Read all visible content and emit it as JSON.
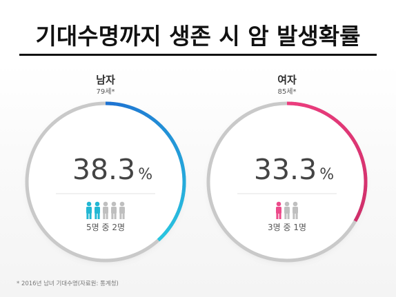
{
  "title": "기대수명까지 생존 시 암 발생확률",
  "footnote": "* 2016년 남녀 기대수명(자료원: 통계청)",
  "chart_data": [
    {
      "type": "pie",
      "label": "남자",
      "age": "79세*",
      "value": 38.3,
      "value_text": "38.3",
      "unit": "%",
      "people_total": 5,
      "people_highlight": 2,
      "caption": "5명 중 2명",
      "colors": {
        "start": "#1e73d2",
        "end": "#29c6e0",
        "track": "#c9c9c9",
        "person_on": "#22b7d3",
        "person_off": "#bfbfbf"
      }
    },
    {
      "type": "pie",
      "label": "여자",
      "age": "85세*",
      "value": 33.3,
      "value_text": "33.3",
      "unit": "%",
      "people_total": 3,
      "people_highlight": 1,
      "caption": "3명 중 1명",
      "colors": {
        "start": "#ec3d7e",
        "end": "#cf2f6a",
        "track": "#c9c9c9",
        "person_on": "#ec4a8a",
        "person_off": "#bfbfbf"
      }
    }
  ]
}
